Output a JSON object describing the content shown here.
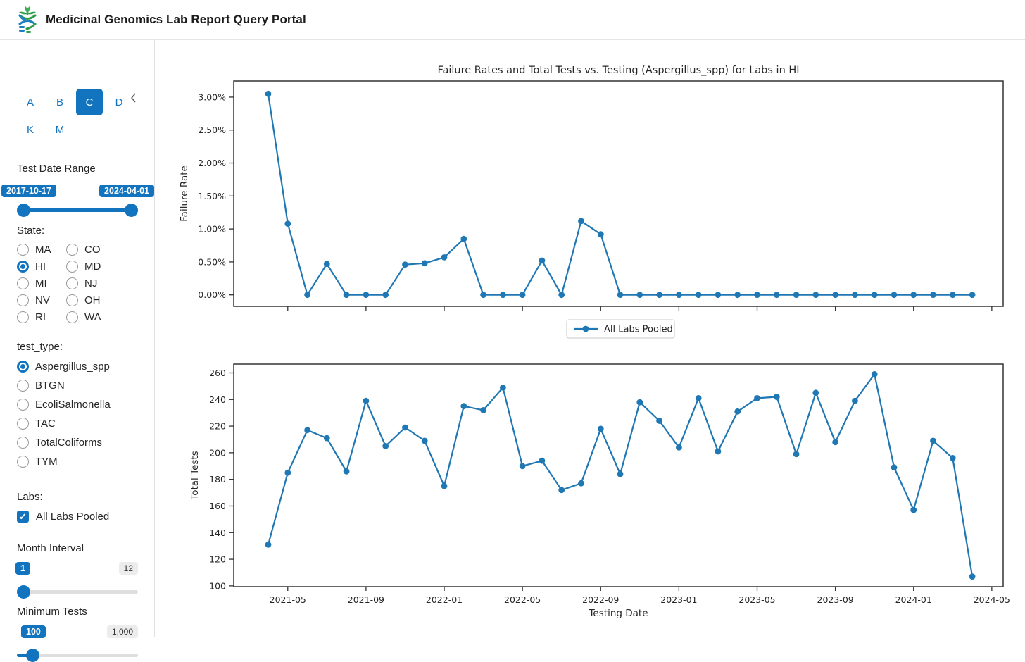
{
  "header": {
    "title": "Medicinal Genomics Lab Report Query Portal"
  },
  "sidebar": {
    "tabs": [
      "A",
      "B",
      "C",
      "D",
      "K",
      "M"
    ],
    "active_tab": "C",
    "date_range": {
      "label": "Test Date Range",
      "from": "2017-10-17",
      "to": "2024-04-01"
    },
    "state": {
      "label": "State:",
      "options": [
        "MA",
        "CO",
        "HI",
        "MD",
        "MI",
        "NJ",
        "NV",
        "OH",
        "RI",
        "WA"
      ],
      "selected": "HI"
    },
    "test_type": {
      "label": "test_type:",
      "options": [
        "Aspergillus_spp",
        "BTGN",
        "EcoliSalmonella",
        "TAC",
        "TotalColiforms",
        "TYM"
      ],
      "selected": "Aspergillus_spp"
    },
    "labs": {
      "label": "Labs:",
      "options": [
        {
          "label": "All Labs Pooled",
          "checked": true
        }
      ]
    },
    "month_interval": {
      "label": "Month Interval",
      "value": "1",
      "max": "12"
    },
    "minimum_tests": {
      "label": "Minimum Tests",
      "value": "100",
      "max": "1,000"
    }
  },
  "colors": {
    "accent": "#1273bf",
    "chart_line": "#1f77b4",
    "axis": "#333333"
  },
  "legend": {
    "label": "All Labs Pooled"
  },
  "chart_data": [
    {
      "type": "line",
      "title": "Failure Rates and Total Tests vs. Testing (Aspergillus_spp) for Labs in HI",
      "ylabel": "Failure Rate",
      "xlabel": "",
      "series_name": "All Labs Pooled",
      "x": [
        "2021-04",
        "2021-05",
        "2021-06",
        "2021-07",
        "2021-08",
        "2021-09",
        "2021-10",
        "2021-11",
        "2021-12",
        "2022-01",
        "2022-02",
        "2022-03",
        "2022-04",
        "2022-05",
        "2022-06",
        "2022-07",
        "2022-08",
        "2022-09",
        "2022-10",
        "2022-11",
        "2022-12",
        "2023-01",
        "2023-02",
        "2023-03",
        "2023-04",
        "2023-05",
        "2023-06",
        "2023-07",
        "2023-08",
        "2023-09",
        "2023-10",
        "2023-11",
        "2023-12",
        "2024-01",
        "2024-02",
        "2024-03",
        "2024-04"
      ],
      "values": [
        3.05,
        1.08,
        0.0,
        0.47,
        0.0,
        0.0,
        0.0,
        0.46,
        0.48,
        0.57,
        0.85,
        0.0,
        0.0,
        0.0,
        0.52,
        0.0,
        1.12,
        0.92,
        0.0,
        0.0,
        0.0,
        0.0,
        0.0,
        0.0,
        0.0,
        0.0,
        0.0,
        0.0,
        0.0,
        0.0,
        0.0,
        0.0,
        0.0,
        0.0,
        0.0,
        0.0,
        0.0
      ],
      "ytick_values": [
        0.0,
        0.5,
        1.0,
        1.5,
        2.0,
        2.5,
        3.0
      ],
      "ytick_labels": [
        "0.00%",
        "0.50%",
        "1.00%",
        "1.50%",
        "2.00%",
        "2.50%",
        "3.00%"
      ],
      "xtick_labels": [
        "2021-05",
        "2021-09",
        "2022-01",
        "2022-05",
        "2022-09",
        "2023-01",
        "2023-05",
        "2023-09",
        "2024-01",
        "2024-05"
      ],
      "show_xtick_labels": false,
      "ylim": [
        -0.174,
        3.245
      ],
      "grid": false,
      "legend_position": "below"
    },
    {
      "type": "line",
      "title": "",
      "ylabel": "Total Tests",
      "xlabel": "Testing Date",
      "series_name": "All Labs Pooled",
      "x": [
        "2021-04",
        "2021-05",
        "2021-06",
        "2021-07",
        "2021-08",
        "2021-09",
        "2021-10",
        "2021-11",
        "2021-12",
        "2022-01",
        "2022-02",
        "2022-03",
        "2022-04",
        "2022-05",
        "2022-06",
        "2022-07",
        "2022-08",
        "2022-09",
        "2022-10",
        "2022-11",
        "2022-12",
        "2023-01",
        "2023-02",
        "2023-03",
        "2023-04",
        "2023-05",
        "2023-06",
        "2023-07",
        "2023-08",
        "2023-09",
        "2023-10",
        "2023-11",
        "2023-12",
        "2024-01",
        "2024-02",
        "2024-03",
        "2024-04"
      ],
      "values": [
        131,
        185,
        217,
        211,
        186,
        239,
        205,
        219,
        209,
        175,
        235,
        232,
        249,
        190,
        194,
        172,
        177,
        218,
        184,
        238,
        224,
        204,
        241,
        201,
        231,
        241,
        242,
        199,
        245,
        208,
        239,
        259,
        189,
        157,
        209,
        196,
        107
      ],
      "ytick_values": [
        100,
        120,
        140,
        160,
        180,
        200,
        220,
        240,
        260
      ],
      "ytick_labels": [
        "100",
        "120",
        "140",
        "160",
        "180",
        "200",
        "220",
        "240",
        "260"
      ],
      "xtick_labels": [
        "2021-05",
        "2021-09",
        "2022-01",
        "2022-05",
        "2022-09",
        "2023-01",
        "2023-05",
        "2023-09",
        "2024-01",
        "2024-05"
      ],
      "show_xtick_labels": true,
      "ylim": [
        99.4,
        266.6
      ],
      "grid": false,
      "legend_position": "none"
    }
  ]
}
